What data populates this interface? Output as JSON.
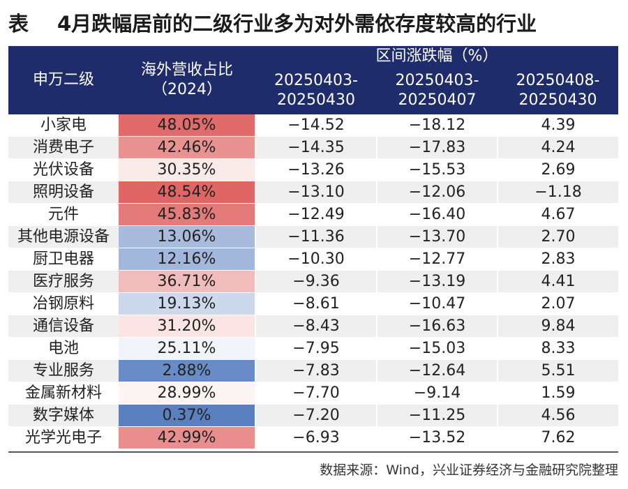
{
  "title": {
    "prefix": "表",
    "text": "4月跌幅居前的二级行业多为对外需依存度较高的行业"
  },
  "chart_data": {
    "type": "table",
    "columns": {
      "industry": "申万二级",
      "share_line1": "海外营收占比",
      "share_line2": "（2024）",
      "range_group": "区间涨跌幅（%）",
      "periods": [
        {
          "line1": "20250403-",
          "line2": "20250430"
        },
        {
          "line1": "20250403-",
          "line2": "20250407"
        },
        {
          "line1": "20250408-",
          "line2": "20250430"
        }
      ]
    },
    "rows": [
      {
        "industry": "小家电",
        "share": "48.05%",
        "share_value": 48.05,
        "r1": "−14.52",
        "r2": "−18.12",
        "r3": "4.39"
      },
      {
        "industry": "消费电子",
        "share": "42.46%",
        "share_value": 42.46,
        "r1": "−14.35",
        "r2": "−17.83",
        "r3": "4.24"
      },
      {
        "industry": "光伏设备",
        "share": "30.35%",
        "share_value": 30.35,
        "r1": "−13.26",
        "r2": "−15.53",
        "r3": "2.69"
      },
      {
        "industry": "照明设备",
        "share": "48.54%",
        "share_value": 48.54,
        "r1": "−13.10",
        "r2": "−12.06",
        "r3": "−1.18"
      },
      {
        "industry": "元件",
        "share": "45.83%",
        "share_value": 45.83,
        "r1": "−12.49",
        "r2": "−16.40",
        "r3": "4.67"
      },
      {
        "industry": "其他电源设备",
        "share": "13.06%",
        "share_value": 13.06,
        "r1": "−11.36",
        "r2": "−13.70",
        "r3": "2.70"
      },
      {
        "industry": "厨卫电器",
        "share": "12.16%",
        "share_value": 12.16,
        "r1": "−10.30",
        "r2": "−12.77",
        "r3": "2.83"
      },
      {
        "industry": "医疗服务",
        "share": "36.71%",
        "share_value": 36.71,
        "r1": "−9.36",
        "r2": "−13.19",
        "r3": "4.41"
      },
      {
        "industry": "冶钢原料",
        "share": "19.13%",
        "share_value": 19.13,
        "r1": "−8.61",
        "r2": "−10.47",
        "r3": "2.07"
      },
      {
        "industry": "通信设备",
        "share": "31.20%",
        "share_value": 31.2,
        "r1": "−8.43",
        "r2": "−16.63",
        "r3": "9.84"
      },
      {
        "industry": "电池",
        "share": "25.11%",
        "share_value": 25.11,
        "r1": "−7.95",
        "r2": "−15.03",
        "r3": "8.33"
      },
      {
        "industry": "专业服务",
        "share": "2.88%",
        "share_value": 2.88,
        "r1": "−7.83",
        "r2": "−12.64",
        "r3": "5.51"
      },
      {
        "industry": "金属新材料",
        "share": "28.99%",
        "share_value": 28.99,
        "r1": "−7.70",
        "r2": "−9.14",
        "r3": "1.59"
      },
      {
        "industry": "数字媒体",
        "share": "0.37%",
        "share_value": 0.37,
        "r1": "−7.20",
        "r2": "−11.25",
        "r3": "4.56"
      },
      {
        "industry": "光学光电子",
        "share": "42.99%",
        "share_value": 42.99,
        "r1": "−6.93",
        "r2": "−13.52",
        "r3": "7.62"
      }
    ],
    "heatmap": {
      "low_color": "#5b80c0",
      "mid_color": "#ffffff",
      "high_color": "#e06666"
    }
  },
  "source": "数据来源：Wind，兴业证券经济与金融研究院整理"
}
